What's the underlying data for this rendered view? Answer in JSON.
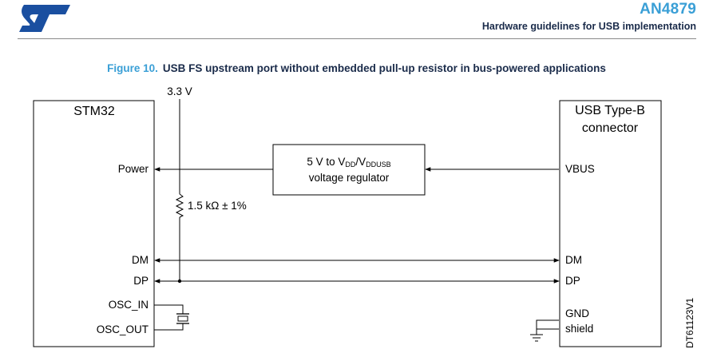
{
  "header": {
    "doc_id": "AN4879",
    "doc_subtitle": "Hardware guidelines for USB implementation",
    "logo_name": "st-logo"
  },
  "figure": {
    "number": "Figure 10.",
    "title": "USB FS upstream port without embedded pull-up resistor in bus-powered applications",
    "code": "DT61123V1"
  },
  "stm32": {
    "title": "STM32",
    "pins": {
      "power": "Power",
      "dm": "DM",
      "dp": "DP",
      "osc_in": "OSC_IN",
      "osc_out": "OSC_OUT"
    }
  },
  "connector": {
    "title_line1": "USB Type-B",
    "title_line2": "connector",
    "pins": {
      "vbus": "VBUS",
      "dm": "DM",
      "dp": "DP",
      "gnd": "GND",
      "shield": "shield"
    }
  },
  "supply": {
    "label": "3.3 V"
  },
  "regulator": {
    "line1_prefix": "5 V to V",
    "line1_sub1": "DD",
    "line1_mid": "/V",
    "line1_sub2": "DDUSB",
    "line2": "voltage regulator"
  },
  "resistor": {
    "label": "1.5 kΩ ±  1%"
  },
  "colors": {
    "accent": "#3a9fd6",
    "dark": "#1a2b4a",
    "st_logo": "#1a4fa0"
  }
}
